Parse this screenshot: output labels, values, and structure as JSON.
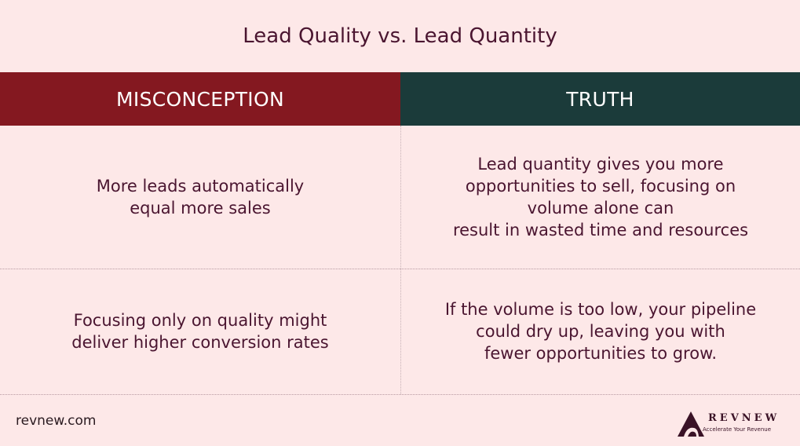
{
  "title": "Lead Quality vs. Lead Quantity",
  "headers": {
    "left": "MISCONCEPTION",
    "right": "TRUTH"
  },
  "rows": [
    {
      "misconception": "More leads automatically\nequal more sales",
      "truth": "Lead quantity gives you more\nopportunities to sell, focusing on\nvolume alone can\nresult in wasted time and resources"
    },
    {
      "misconception": "Focusing only on quality might\ndeliver higher conversion rates",
      "truth": "If the volume is too low, your pipeline\ncould dry up, leaving you with\nfewer opportunities to grow."
    }
  ],
  "footer": {
    "url": "revnew.com",
    "logo_name": "REVNEW",
    "logo_tagline": "Accelerate Your Revenue",
    "logo_icon": "revnew-logo-icon"
  },
  "colors": {
    "background": "#fde8e8",
    "misconception_header": "#841820",
    "truth_header": "#1b3b3a",
    "text": "#4a1530"
  }
}
